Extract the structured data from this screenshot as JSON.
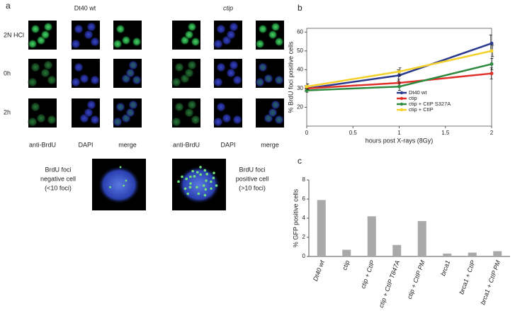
{
  "panel_labels": [
    "a",
    "b",
    "c"
  ],
  "panel_a": {
    "groups": [
      "Dt40 wt",
      "ctip"
    ],
    "rows": [
      "2N HCl",
      "0h",
      "2h"
    ],
    "columns": [
      "anti-BrdU",
      "DAPI",
      "merge",
      "anti-BrdU",
      "DAPI",
      "merge"
    ],
    "examples": [
      {
        "lines": [
          "BrdU foci",
          "negative cell",
          "(<10 foci)"
        ]
      },
      {
        "lines": [
          "BrdU foci",
          "positive cell",
          "(>10 foci)"
        ]
      }
    ]
  },
  "chart_data": [
    {
      "type": "line",
      "x": [
        0,
        1,
        2
      ],
      "xlim": [
        0,
        2
      ],
      "xticks": [
        0,
        0.5,
        1,
        1.5,
        2
      ],
      "ylim": [
        10,
        62
      ],
      "yticks": [
        20,
        30,
        40,
        50,
        60
      ],
      "xlabel": "hours post X-rays (8Gy)",
      "ylabel": "% BrdU foci positive cells",
      "legend": "lower right",
      "series": [
        {
          "name": "Dt40 wt",
          "color": "#2b3a8f",
          "values": [
            30,
            37,
            54
          ],
          "errors": [
            1.5,
            3,
            4.5
          ]
        },
        {
          "name": "ctip",
          "color": "#e0302a",
          "values": [
            30,
            33,
            38
          ],
          "errors": [
            1,
            2,
            3
          ]
        },
        {
          "name": "ctip + CtIP S327A",
          "color": "#2e8a3e",
          "values": [
            29,
            31,
            43
          ],
          "errors": [
            1,
            2,
            3
          ]
        },
        {
          "name": "ctip + CtIP",
          "color": "#f3d02a",
          "values": [
            31,
            39,
            50
          ],
          "errors": [
            1.5,
            2,
            3
          ]
        }
      ]
    },
    {
      "type": "bar",
      "categories": [
        "Dt40 wt",
        "ctip",
        "ctip + CtIP",
        "ctip + CtIP T847A",
        "ctip + CtIP PM",
        "brca1",
        "brca1 + CtIP",
        "brca1 + CtIP PM"
      ],
      "values": [
        5.9,
        0.7,
        4.2,
        1.2,
        3.7,
        0.3,
        0.4,
        0.55
      ],
      "color": "#a9a9a9",
      "ylim": [
        0,
        8
      ],
      "yticks": [
        0,
        2,
        4,
        6,
        8
      ],
      "ylabel": "% GFP positive cells"
    }
  ]
}
